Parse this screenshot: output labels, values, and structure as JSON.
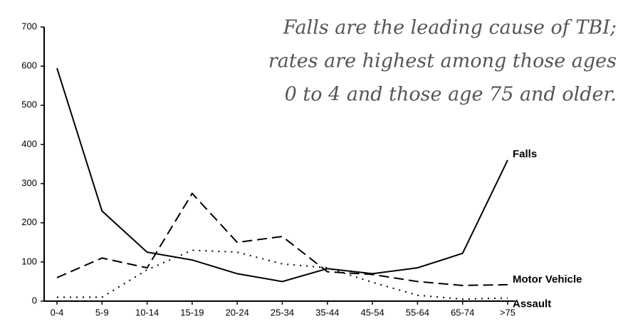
{
  "chart_data": {
    "type": "line",
    "annotation": [
      "Falls are the leading cause of TBI;",
      "rates are highest among those ages",
      "0 to 4 and those age 75 and older."
    ],
    "categories": [
      "0-4",
      "5-9",
      "10-14",
      "15-19",
      "20-24",
      "25-34",
      "35-44",
      "45-54",
      "55-64",
      "65-74",
      ">75"
    ],
    "series": [
      {
        "name": "Falls",
        "color": "#000000",
        "style": "solid",
        "values": [
          595,
          230,
          125,
          105,
          70,
          50,
          83,
          70,
          85,
          122,
          360
        ]
      },
      {
        "name": "Motor Vehicle",
        "color": "#000000",
        "style": "dashed",
        "values": [
          60,
          110,
          85,
          275,
          150,
          165,
          75,
          68,
          50,
          40,
          42
        ]
      },
      {
        "name": "Assault",
        "color": "#000000",
        "style": "dotted",
        "values": [
          10,
          10,
          80,
          130,
          125,
          95,
          85,
          48,
          15,
          5,
          8
        ]
      }
    ],
    "ylim": [
      0,
      700
    ],
    "yticks": [
      0,
      100,
      200,
      300,
      400,
      500,
      600,
      700
    ],
    "grid": false
  }
}
